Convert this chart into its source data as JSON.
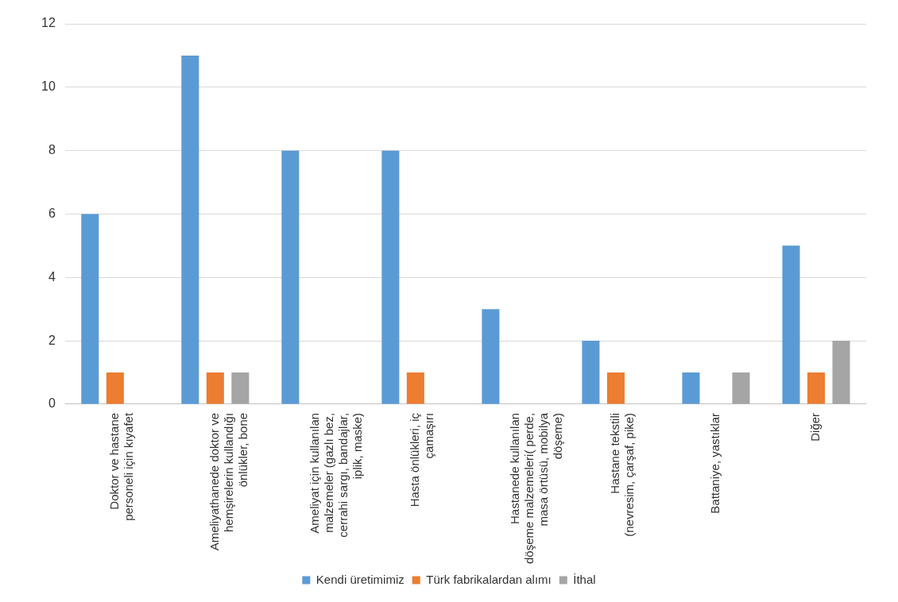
{
  "chart_data": {
    "type": "bar",
    "categories": [
      "Doktor ve hastane personeli için kıyafet",
      "Ameliyathanede doktor ve hemşirelerin kullandığı önlükler, bone",
      "Ameliyat için kullanılan malzemeler (gazlı bez, cerrahi sargı, bandajlar, iplik, maske)",
      "Hasta önlükleri, iç çamaşırı",
      "Hastanede kullanılan döşeme malzemeleri( perde, masa örtüsü, mobilya döşeme)",
      "Hastane tekstili (nevresim, çarşaf, pike)",
      "Battaniye, yastıklar",
      "Diğer"
    ],
    "series": [
      {
        "name": "Kendi üretimimiz",
        "color": "#5b9bd5",
        "values": [
          6,
          11,
          8,
          8,
          3,
          2,
          1,
          5
        ]
      },
      {
        "name": "Türk fabrikalardan alımı",
        "color": "#ed7d31",
        "values": [
          1,
          1,
          0,
          1,
          0,
          1,
          0,
          1
        ]
      },
      {
        "name": "İthal",
        "color": "#a5a5a5",
        "values": [
          0,
          1,
          0,
          0,
          0,
          0,
          1,
          2
        ]
      }
    ],
    "ylim": [
      0,
      12
    ],
    "yticks": [
      0,
      2,
      4,
      6,
      8,
      10,
      12
    ],
    "grid": "y",
    "legend": "bottom"
  }
}
